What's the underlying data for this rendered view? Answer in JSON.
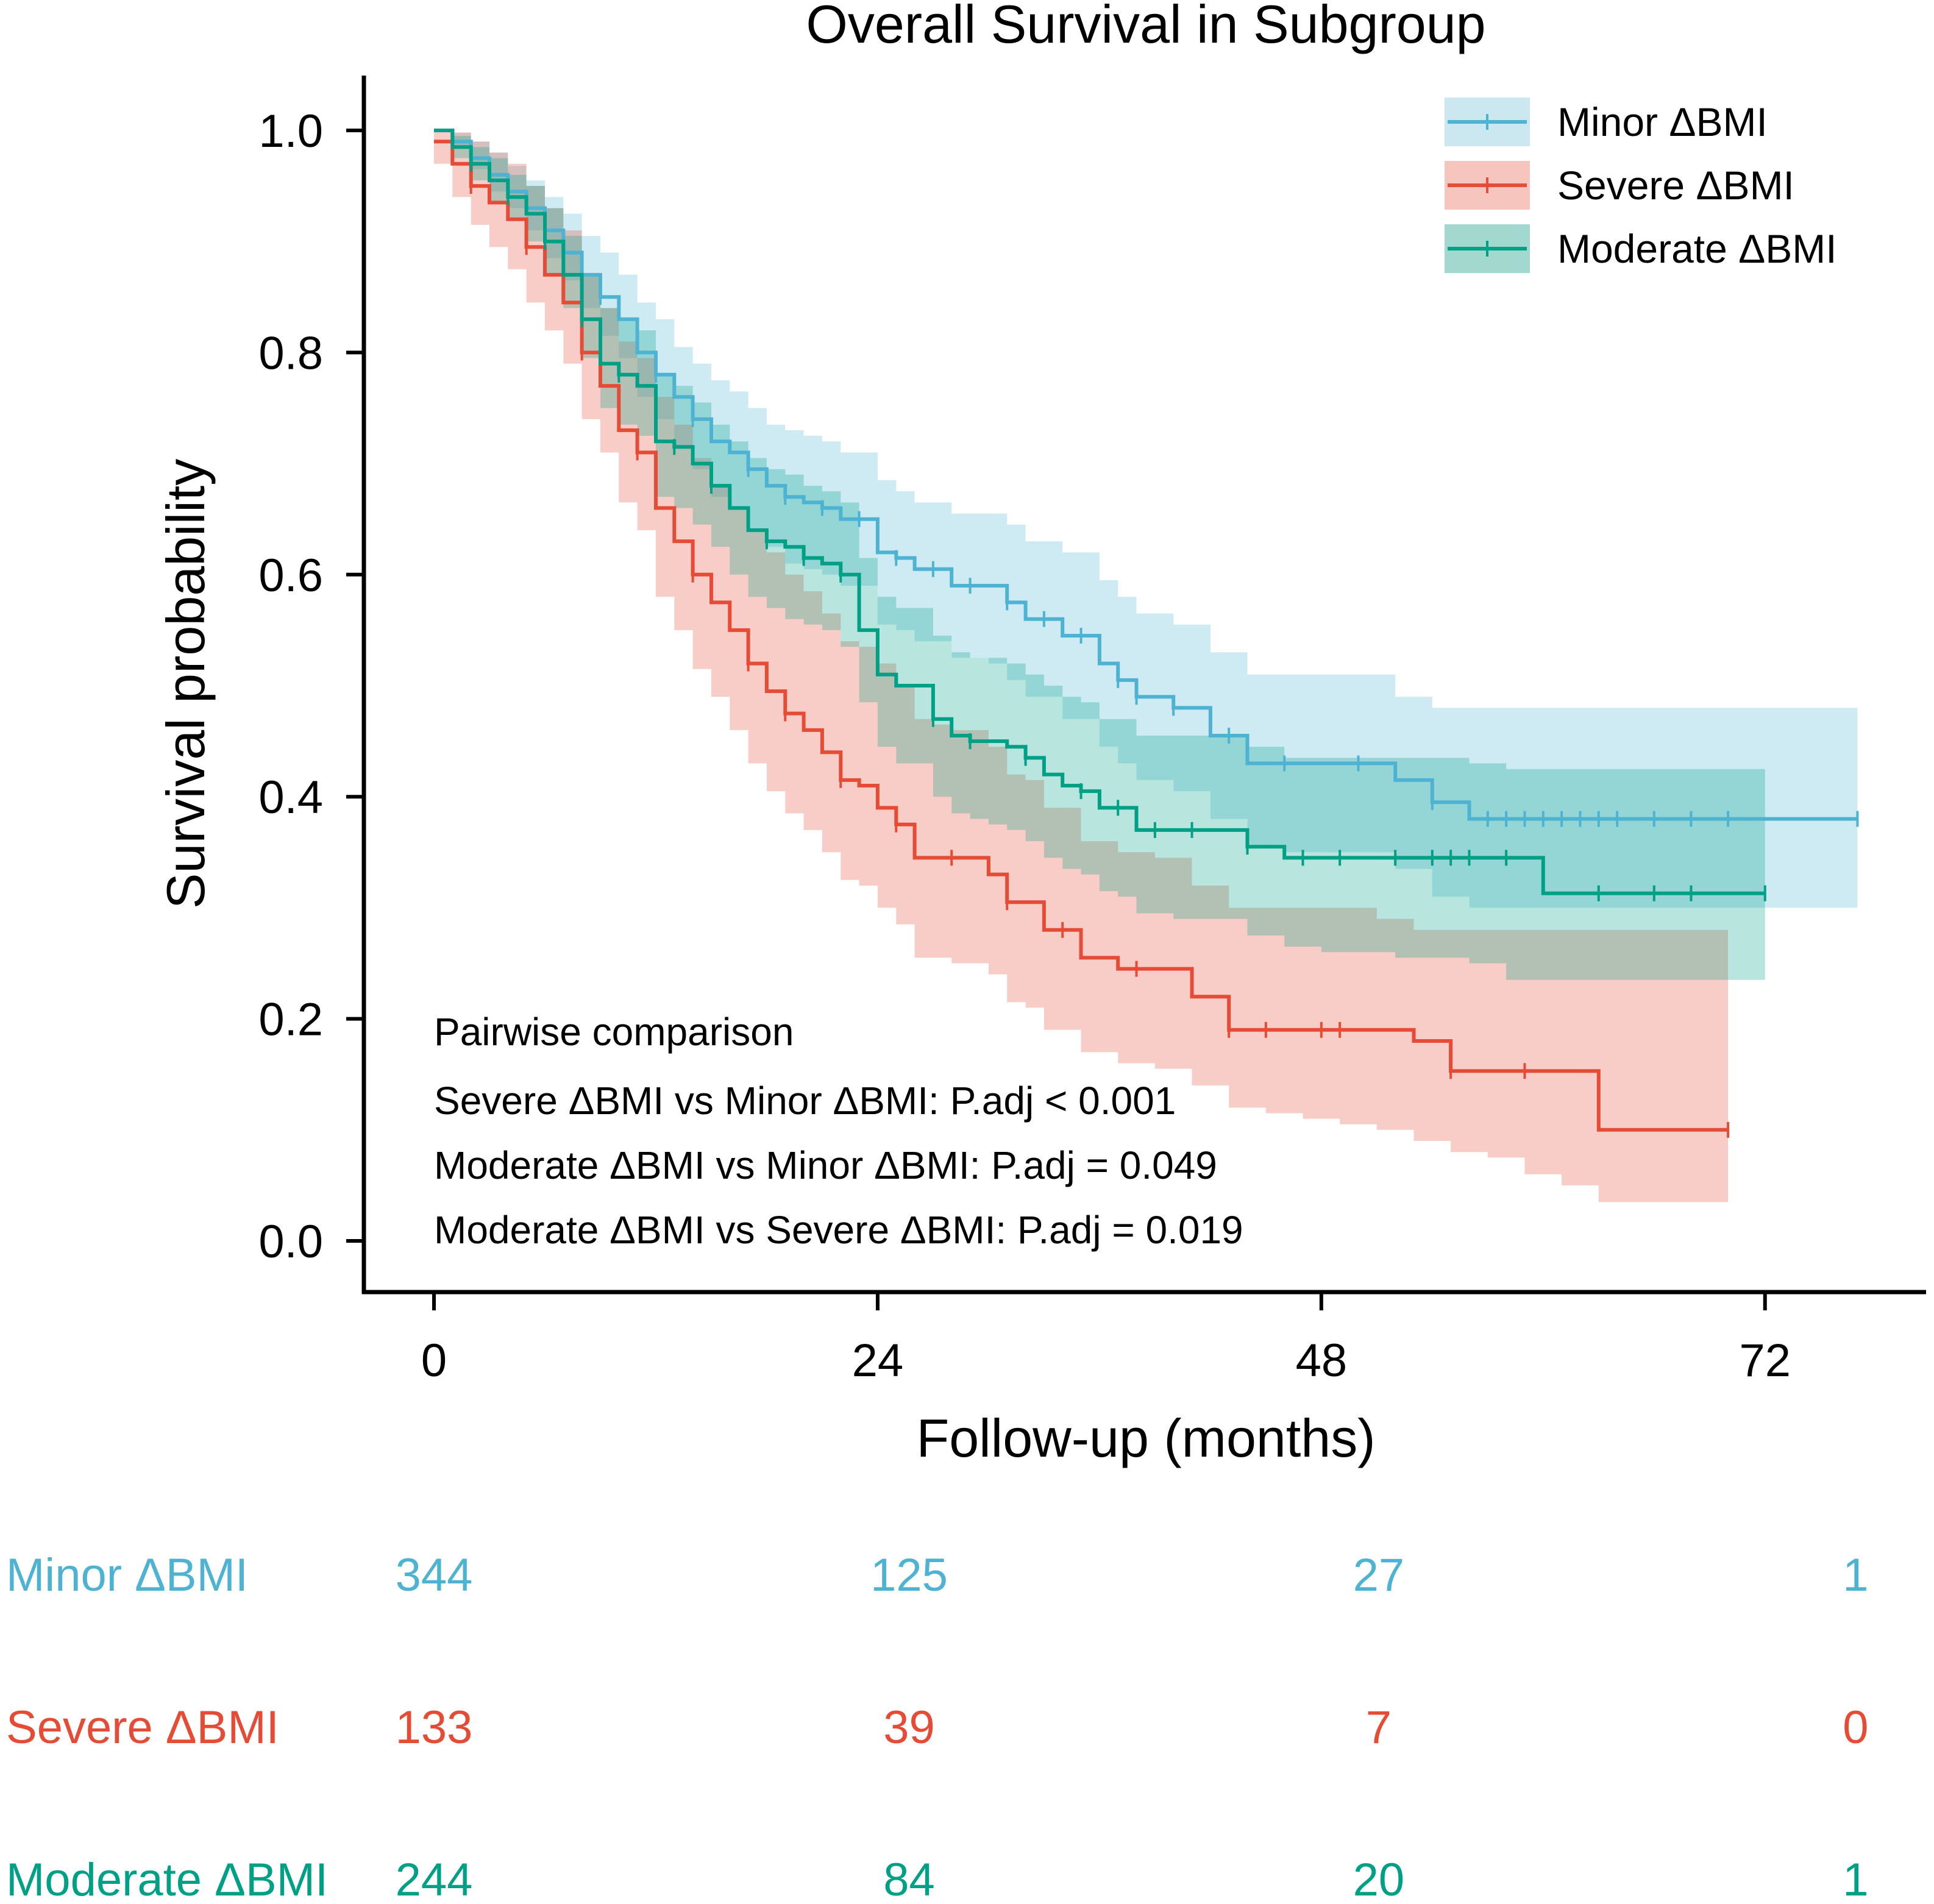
{
  "chart_data": {
    "type": "line",
    "subtype": "kaplan-meier",
    "title": "Overall Survival in Subgroup",
    "xlabel": "Follow-up (months)",
    "ylabel": "Survival probability",
    "xlim": [
      -4,
      81
    ],
    "ylim": [
      -0.1,
      1.1
    ],
    "x_ticks": [
      "0",
      "24",
      "48",
      "72"
    ],
    "x_tick_values": [
      0,
      24,
      48,
      72
    ],
    "y_ticks": [
      "0.0",
      "0.2",
      "0.4",
      "0.6",
      "0.8",
      "1.0"
    ],
    "y_tick_values": [
      0,
      0.2,
      0.4,
      0.6,
      0.8,
      1.0
    ],
    "legend_position": "top-right",
    "series": [
      {
        "name": "Minor ΔBMI",
        "color": "#4EB3D3",
        "band_color": "#CBE8F0",
        "x": [
          0,
          1,
          2,
          3,
          4,
          5,
          6,
          7,
          8,
          9,
          10,
          11,
          12,
          13,
          14,
          15,
          16,
          17,
          18,
          19,
          20,
          21,
          22,
          24,
          25,
          26,
          28,
          30,
          31,
          32,
          34,
          36,
          37,
          38,
          40,
          42,
          44,
          46,
          48,
          50,
          52,
          54,
          56,
          58,
          60,
          62,
          64,
          66,
          68,
          70,
          72,
          74,
          77
        ],
        "y": [
          1.0,
          0.99,
          0.975,
          0.96,
          0.945,
          0.93,
          0.91,
          0.89,
          0.87,
          0.85,
          0.83,
          0.8,
          0.78,
          0.76,
          0.74,
          0.72,
          0.71,
          0.695,
          0.68,
          0.67,
          0.665,
          0.66,
          0.65,
          0.62,
          0.615,
          0.605,
          0.59,
          0.59,
          0.575,
          0.56,
          0.545,
          0.52,
          0.505,
          0.49,
          0.48,
          0.455,
          0.43,
          0.43,
          0.43,
          0.43,
          0.415,
          0.395,
          0.38,
          0.38,
          0.38,
          0.38,
          0.38,
          0.38,
          0.38,
          0.38,
          0.38,
          0.38,
          0.38
        ],
        "lower": [
          1.0,
          0.985,
          0.965,
          0.945,
          0.93,
          0.91,
          0.885,
          0.865,
          0.84,
          0.815,
          0.795,
          0.76,
          0.74,
          0.715,
          0.695,
          0.67,
          0.66,
          0.64,
          0.625,
          0.61,
          0.605,
          0.6,
          0.59,
          0.555,
          0.55,
          0.54,
          0.525,
          0.52,
          0.505,
          0.49,
          0.47,
          0.445,
          0.43,
          0.415,
          0.405,
          0.38,
          0.355,
          0.35,
          0.35,
          0.35,
          0.335,
          0.31,
          0.3,
          0.3,
          0.3,
          0.3,
          0.3,
          0.3,
          0.3,
          0.3,
          0.3,
          0.3,
          0.3
        ],
        "upper": [
          1.0,
          0.998,
          0.99,
          0.98,
          0.968,
          0.955,
          0.94,
          0.925,
          0.905,
          0.89,
          0.87,
          0.845,
          0.83,
          0.805,
          0.79,
          0.775,
          0.765,
          0.75,
          0.735,
          0.73,
          0.725,
          0.72,
          0.71,
          0.685,
          0.675,
          0.665,
          0.655,
          0.655,
          0.645,
          0.63,
          0.62,
          0.595,
          0.58,
          0.565,
          0.555,
          0.53,
          0.51,
          0.51,
          0.51,
          0.51,
          0.49,
          0.48,
          0.48,
          0.48,
          0.48,
          0.48,
          0.48,
          0.48,
          0.48,
          0.48,
          0.48,
          0.48,
          0.48
        ],
        "censor_x": [
          2,
          4,
          6,
          9,
          12,
          14,
          17,
          19,
          21,
          23,
          25,
          27,
          29,
          31,
          33,
          35,
          37,
          38,
          40,
          43,
          46,
          50,
          54,
          57,
          58,
          59,
          60,
          61,
          62,
          63,
          64,
          66,
          68,
          70,
          77
        ],
        "at_risk": [
          344,
          125,
          27,
          1
        ]
      },
      {
        "name": "Severe ΔBMI",
        "color": "#E64B35",
        "band_color": "#F6C5BD",
        "x": [
          0,
          1,
          2,
          3,
          4,
          5,
          6,
          7,
          8,
          9,
          10,
          11,
          12,
          13,
          14,
          15,
          16,
          17,
          18,
          19,
          20,
          21,
          22,
          23,
          24,
          25,
          26,
          27,
          28,
          30,
          31,
          32,
          33,
          35,
          37,
          39,
          41,
          43,
          45,
          47,
          49,
          51,
          53,
          55,
          57,
          59,
          61,
          63,
          65,
          67,
          70
        ],
        "y": [
          0.99,
          0.97,
          0.95,
          0.935,
          0.92,
          0.895,
          0.87,
          0.845,
          0.8,
          0.77,
          0.73,
          0.71,
          0.66,
          0.63,
          0.6,
          0.575,
          0.55,
          0.52,
          0.495,
          0.475,
          0.46,
          0.44,
          0.415,
          0.41,
          0.39,
          0.375,
          0.345,
          0.345,
          0.345,
          0.33,
          0.305,
          0.305,
          0.28,
          0.255,
          0.245,
          0.245,
          0.22,
          0.19,
          0.19,
          0.19,
          0.19,
          0.19,
          0.18,
          0.153,
          0.153,
          0.153,
          0.153,
          0.1,
          0.1,
          0.1,
          0.1
        ],
        "lower": [
          0.97,
          0.94,
          0.915,
          0.895,
          0.875,
          0.845,
          0.82,
          0.79,
          0.74,
          0.71,
          0.665,
          0.64,
          0.58,
          0.55,
          0.515,
          0.49,
          0.46,
          0.43,
          0.405,
          0.385,
          0.37,
          0.35,
          0.325,
          0.32,
          0.3,
          0.285,
          0.255,
          0.255,
          0.25,
          0.24,
          0.215,
          0.21,
          0.19,
          0.17,
          0.16,
          0.155,
          0.14,
          0.12,
          0.115,
          0.11,
          0.105,
          0.1,
          0.09,
          0.08,
          0.075,
          0.06,
          0.05,
          0.035,
          0.035,
          0.035,
          0.035
        ],
        "upper": [
          1.0,
          0.998,
          0.99,
          0.98,
          0.97,
          0.95,
          0.93,
          0.91,
          0.87,
          0.84,
          0.81,
          0.795,
          0.76,
          0.735,
          0.705,
          0.68,
          0.66,
          0.64,
          0.62,
          0.6,
          0.585,
          0.565,
          0.54,
          0.535,
          0.52,
          0.5,
          0.47,
          0.465,
          0.46,
          0.445,
          0.42,
          0.415,
          0.39,
          0.36,
          0.35,
          0.345,
          0.32,
          0.3,
          0.3,
          0.3,
          0.3,
          0.29,
          0.28,
          0.28,
          0.28,
          0.28,
          0.28,
          0.28,
          0.28,
          0.28,
          0.28
        ],
        "censor_x": [
          2,
          5,
          8,
          11,
          14,
          17,
          19,
          22,
          25,
          28,
          31,
          34,
          38,
          43,
          45,
          48,
          49,
          55,
          59,
          70
        ],
        "at_risk": [
          133,
          39,
          7,
          0
        ]
      },
      {
        "name": "Moderate ΔBMI",
        "color": "#00A087",
        "band_color": "#A3D8CE",
        "x": [
          0,
          1,
          2,
          3,
          4,
          5,
          6,
          7,
          8,
          9,
          10,
          11,
          12,
          13,
          14,
          15,
          16,
          17,
          18,
          19,
          20,
          21,
          22,
          23,
          24,
          25,
          26,
          27,
          28,
          29,
          30,
          31,
          32,
          33,
          34,
          35,
          36,
          37,
          38,
          40,
          42,
          44,
          46,
          48,
          50,
          52,
          54,
          56,
          58,
          60,
          62,
          64,
          66,
          68,
          70,
          72
        ],
        "y": [
          1.0,
          0.985,
          0.97,
          0.955,
          0.94,
          0.925,
          0.9,
          0.87,
          0.83,
          0.79,
          0.78,
          0.77,
          0.72,
          0.715,
          0.7,
          0.68,
          0.66,
          0.64,
          0.63,
          0.625,
          0.615,
          0.61,
          0.6,
          0.55,
          0.51,
          0.5,
          0.5,
          0.47,
          0.455,
          0.45,
          0.45,
          0.445,
          0.435,
          0.42,
          0.41,
          0.405,
          0.39,
          0.39,
          0.37,
          0.37,
          0.37,
          0.355,
          0.345,
          0.345,
          0.345,
          0.345,
          0.345,
          0.345,
          0.345,
          0.313,
          0.313,
          0.313,
          0.313,
          0.313,
          0.313,
          0.313
        ],
        "lower": [
          1.0,
          0.975,
          0.955,
          0.935,
          0.92,
          0.9,
          0.87,
          0.84,
          0.795,
          0.75,
          0.735,
          0.725,
          0.67,
          0.66,
          0.645,
          0.625,
          0.6,
          0.58,
          0.57,
          0.56,
          0.555,
          0.55,
          0.535,
          0.485,
          0.445,
          0.43,
          0.43,
          0.4,
          0.385,
          0.38,
          0.375,
          0.37,
          0.36,
          0.345,
          0.335,
          0.33,
          0.315,
          0.31,
          0.295,
          0.29,
          0.29,
          0.275,
          0.265,
          0.26,
          0.26,
          0.255,
          0.255,
          0.25,
          0.235,
          0.235,
          0.235,
          0.235,
          0.235,
          0.235,
          0.235,
          0.235
        ],
        "upper": [
          1.0,
          0.995,
          0.985,
          0.975,
          0.96,
          0.95,
          0.93,
          0.905,
          0.87,
          0.84,
          0.83,
          0.82,
          0.78,
          0.77,
          0.755,
          0.735,
          0.72,
          0.705,
          0.695,
          0.69,
          0.68,
          0.675,
          0.665,
          0.615,
          0.58,
          0.57,
          0.57,
          0.545,
          0.53,
          0.525,
          0.525,
          0.52,
          0.51,
          0.5,
          0.49,
          0.485,
          0.47,
          0.47,
          0.455,
          0.455,
          0.455,
          0.445,
          0.435,
          0.435,
          0.435,
          0.435,
          0.435,
          0.43,
          0.425,
          0.425,
          0.425,
          0.425,
          0.425,
          0.425,
          0.425,
          0.425
        ],
        "censor_x": [
          2,
          4,
          6,
          8,
          10,
          13,
          15,
          18,
          20,
          22,
          27,
          29,
          32,
          35,
          37,
          39,
          41,
          44,
          47,
          49,
          52,
          54,
          55,
          56,
          58,
          63,
          66,
          68,
          72
        ],
        "at_risk": [
          244,
          84,
          20,
          1
        ]
      }
    ],
    "annotation": {
      "heading": "Pairwise comparison",
      "lines": [
        "Severe ΔBMI vs Minor ΔBMI: P.adj < 0.001",
        "Moderate ΔBMI vs Minor ΔBMI: P.adj = 0.049",
        "Moderate ΔBMI vs Severe ΔBMI: P.adj = 0.019"
      ]
    },
    "risk_table": {
      "times": [
        0,
        24,
        48,
        72
      ],
      "x_positions": [
        0,
        25.7,
        51.1,
        76.9
      ]
    }
  }
}
